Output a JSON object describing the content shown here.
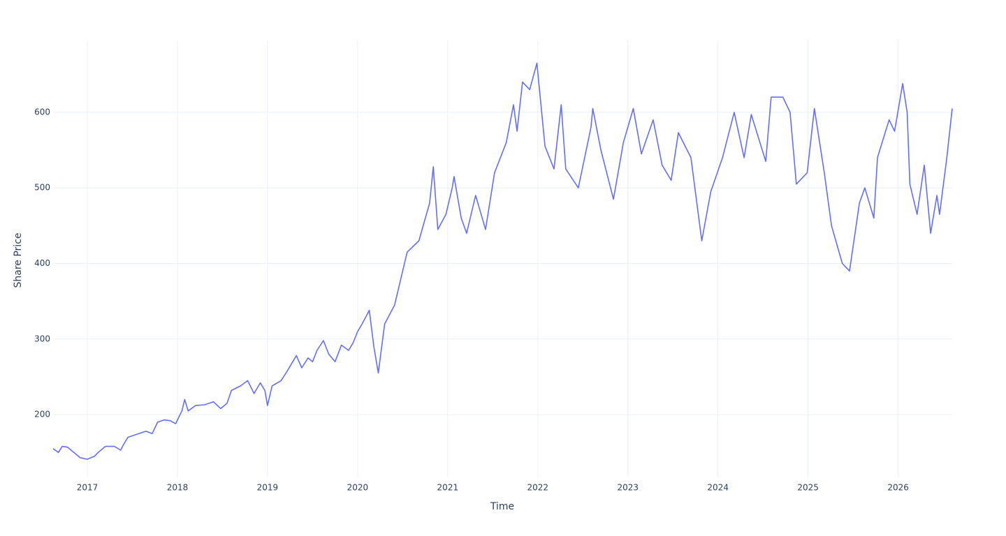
{
  "chart_data": {
    "type": "line",
    "x_label": "Time",
    "y_label": "Share Price",
    "x": [
      2016.62,
      2016.68,
      2016.72,
      2016.78,
      2016.85,
      2016.92,
      2017.0,
      2017.08,
      2017.12,
      2017.2,
      2017.3,
      2017.37,
      2017.4,
      2017.45,
      2017.55,
      2017.65,
      2017.72,
      2017.78,
      2017.85,
      2017.92,
      2017.98,
      2018.05,
      2018.08,
      2018.12,
      2018.2,
      2018.3,
      2018.4,
      2018.48,
      2018.55,
      2018.6,
      2018.7,
      2018.78,
      2018.85,
      2018.92,
      2018.97,
      2019.0,
      2019.05,
      2019.15,
      2019.22,
      2019.28,
      2019.32,
      2019.38,
      2019.45,
      2019.5,
      2019.55,
      2019.62,
      2019.68,
      2019.75,
      2019.82,
      2019.9,
      2019.95,
      2020.0,
      2020.05,
      2020.13,
      2020.18,
      2020.23,
      2020.3,
      2020.41,
      2020.55,
      2020.68,
      2020.8,
      2020.84,
      2020.89,
      2020.98,
      2021.05,
      2021.07,
      2021.15,
      2021.21,
      2021.31,
      2021.42,
      2021.52,
      2021.65,
      2021.73,
      2021.77,
      2021.83,
      2021.91,
      2021.99,
      2022.08,
      2022.18,
      2022.26,
      2022.31,
      2022.45,
      2022.59,
      2022.61,
      2022.7,
      2022.84,
      2022.95,
      2023.06,
      2023.15,
      2023.28,
      2023.38,
      2023.48,
      2023.56,
      2023.7,
      2023.82,
      2023.92,
      2024.05,
      2024.18,
      2024.29,
      2024.37,
      2024.53,
      2024.59,
      2024.72,
      2024.8,
      2024.87,
      2024.99,
      2025.07,
      2025.18,
      2025.26,
      2025.38,
      2025.46,
      2025.57,
      2025.63,
      2025.73,
      2025.77,
      2025.9,
      2025.96,
      2026.05,
      2026.1,
      2026.13,
      2026.21,
      2026.29,
      2026.36,
      2026.43,
      2026.46,
      2026.54,
      2026.6
    ],
    "values": [
      155,
      150,
      158,
      157,
      150,
      143,
      141,
      145,
      150,
      158,
      158,
      153,
      160,
      170,
      174,
      178,
      175,
      190,
      193,
      192,
      188,
      205,
      220,
      205,
      212,
      213,
      217,
      208,
      215,
      232,
      238,
      245,
      228,
      242,
      232,
      212,
      238,
      245,
      258,
      270,
      278,
      262,
      275,
      270,
      285,
      298,
      280,
      270,
      292,
      285,
      295,
      310,
      320,
      338,
      290,
      255,
      320,
      345,
      415,
      430,
      480,
      528,
      445,
      465,
      500,
      515,
      460,
      440,
      490,
      445,
      520,
      560,
      610,
      575,
      640,
      630,
      665,
      555,
      525,
      610,
      525,
      500,
      580,
      605,
      550,
      485,
      560,
      605,
      545,
      590,
      530,
      510,
      573,
      540,
      430,
      495,
      540,
      600,
      540,
      597,
      535,
      620,
      620,
      600,
      505,
      520,
      605,
      520,
      450,
      400,
      390,
      480,
      500,
      460,
      540,
      590,
      575,
      638,
      600,
      505,
      465,
      530,
      440,
      490,
      465,
      540,
      605
    ],
    "color": "#636efa",
    "xlim": [
      2016.62,
      2026.6
    ],
    "xticks": [
      2017,
      2018,
      2019,
      2020,
      2021,
      2022,
      2023,
      2024,
      2025,
      2026
    ],
    "ylim": [
      117,
      695
    ],
    "yticks": [
      200,
      300,
      400,
      500,
      600
    ],
    "grid": true
  }
}
